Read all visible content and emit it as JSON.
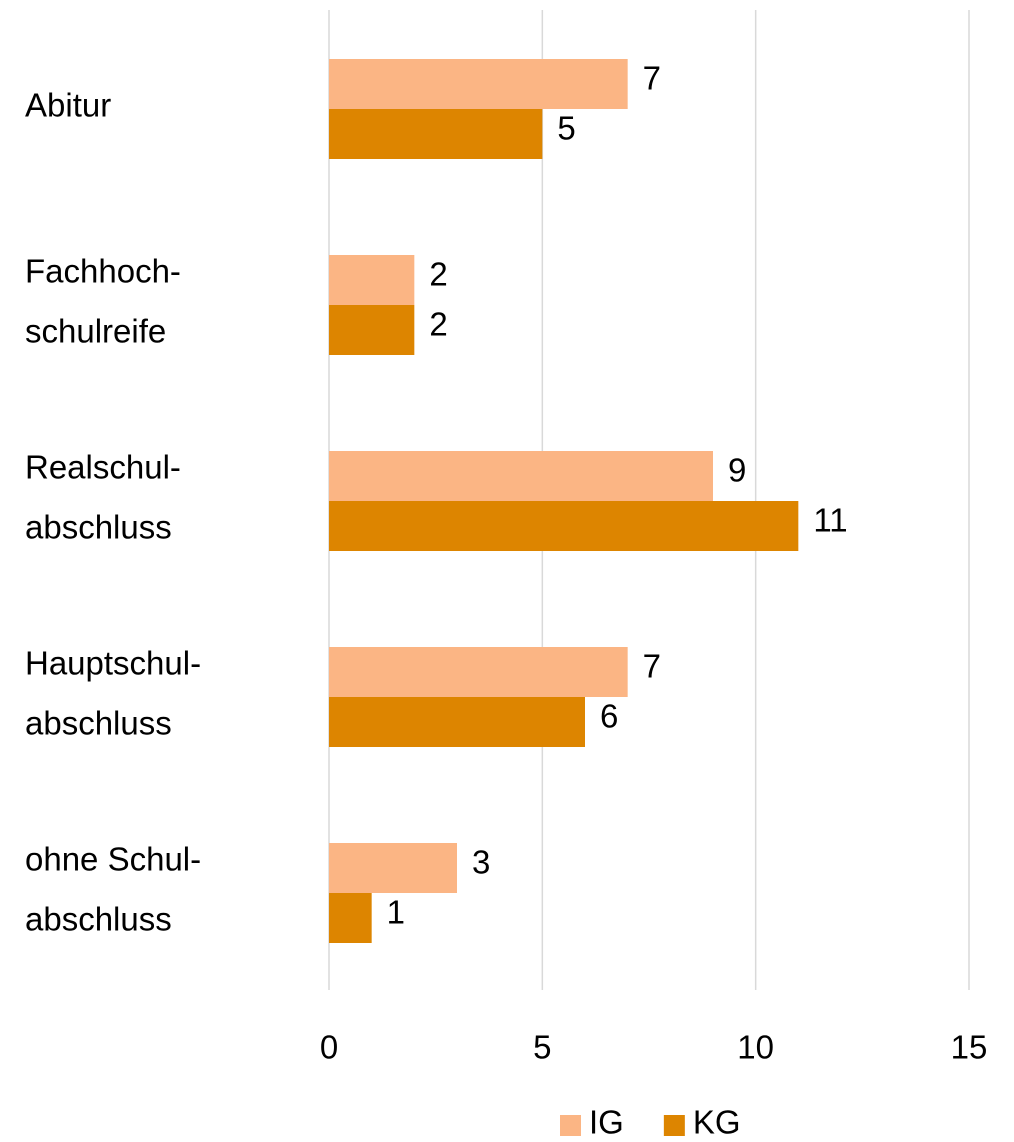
{
  "chart_data": {
    "type": "hbar",
    "categories": [
      [
        "Abitur"
      ],
      [
        "Fachhoch-",
        "schulreife"
      ],
      [
        "Realschul-",
        "abschluss"
      ],
      [
        "Hauptschul-",
        "abschluss"
      ],
      [
        "ohne Schul-",
        "abschluss"
      ]
    ],
    "series": [
      {
        "name": "IG",
        "color": "#fbb584",
        "values": [
          7,
          2,
          9,
          7,
          3
        ]
      },
      {
        "name": "KG",
        "color": "#dd8500",
        "values": [
          5,
          2,
          11,
          6,
          1
        ]
      }
    ],
    "xlim": [
      0,
      15
    ],
    "xticks": [
      0,
      5,
      10,
      15
    ],
    "grid": true,
    "legend": "bottom"
  }
}
